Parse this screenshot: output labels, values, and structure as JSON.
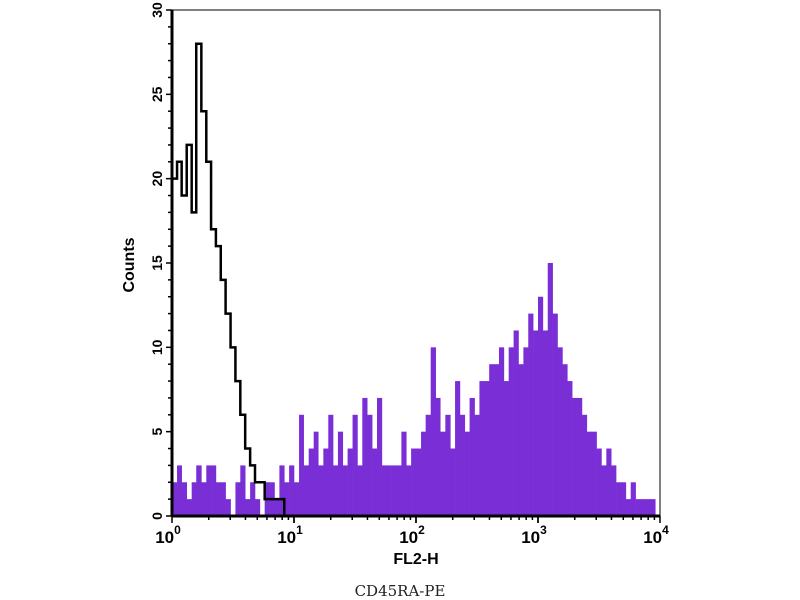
{
  "chart_data": {
    "type": "histogram",
    "title": "",
    "caption": "CD45RA-PE",
    "xlabel": "FL2-H",
    "ylabel": "Counts",
    "xscale": "log",
    "xlim": [
      1,
      10000
    ],
    "ylim": [
      0,
      30
    ],
    "xticks": [
      {
        "base": "10",
        "exp": "0"
      },
      {
        "base": "10",
        "exp": "1"
      },
      {
        "base": "10",
        "exp": "2"
      },
      {
        "base": "10",
        "exp": "3"
      },
      {
        "base": "10",
        "exp": "4"
      }
    ],
    "yticks": [
      "0",
      "5",
      "10",
      "15",
      "20",
      "25",
      "30"
    ],
    "grid": false,
    "colors": {
      "stained": "#7a2ed6",
      "control": "#000000"
    },
    "x": [
      1,
      1.1,
      1.2,
      1.32,
      1.45,
      1.58,
      1.74,
      1.91,
      2.09,
      2.29,
      2.51,
      2.75,
      3.02,
      3.31,
      3.63,
      3.98,
      4.37,
      4.79,
      5.25,
      5.75,
      6.31,
      6.92,
      7.59,
      8.32,
      9.12,
      10.0,
      11.0,
      12.0,
      13.2,
      14.5,
      15.8,
      17.4,
      19.1,
      20.9,
      22.9,
      25.1,
      27.5,
      30.2,
      33.1,
      36.3,
      39.8,
      43.7,
      47.9,
      52.5,
      57.5,
      63.1,
      69.2,
      75.9,
      83.2,
      91.2,
      100,
      110,
      120,
      132,
      145,
      158,
      174,
      191,
      209,
      229,
      251,
      275,
      302,
      331,
      363,
      398,
      437,
      479,
      525,
      575,
      631,
      692,
      759,
      832,
      912,
      1000,
      1096,
      1202,
      1318,
      1445,
      1585,
      1738,
      1905,
      2089,
      2291,
      2512,
      2754,
      3020,
      3311,
      3631,
      3981,
      4365,
      4786,
      5248,
      5754,
      6310,
      6918,
      7586,
      8318
    ],
    "series": [
      {
        "style": "filled",
        "values": [
          2,
          3,
          2,
          1,
          2,
          3,
          2,
          3,
          3,
          2,
          2,
          1,
          0,
          2,
          3,
          1,
          2,
          1,
          0,
          2,
          2,
          1,
          3,
          2,
          3,
          2,
          6,
          3,
          4,
          5,
          3,
          4,
          6,
          3,
          5,
          3,
          4,
          6,
          3,
          7,
          6,
          4,
          7,
          3,
          3,
          3,
          3,
          5,
          3,
          4,
          4,
          5,
          6,
          10,
          7,
          5,
          6,
          4,
          8,
          6,
          5,
          7,
          6,
          8,
          8,
          9,
          9,
          10,
          8,
          10,
          11,
          9,
          10,
          12,
          11,
          13,
          11,
          15,
          12,
          10,
          9,
          8,
          7,
          7,
          6,
          5,
          5,
          4,
          3,
          4,
          3,
          2,
          2,
          1,
          2,
          1,
          1,
          1,
          1
        ]
      },
      {
        "style": "line",
        "values": [
          20,
          21,
          19,
          22,
          18,
          28,
          24,
          21,
          17,
          16,
          14,
          12,
          10,
          8,
          6,
          4,
          3,
          2,
          2,
          1,
          1,
          1,
          1,
          0,
          0
        ]
      }
    ]
  }
}
